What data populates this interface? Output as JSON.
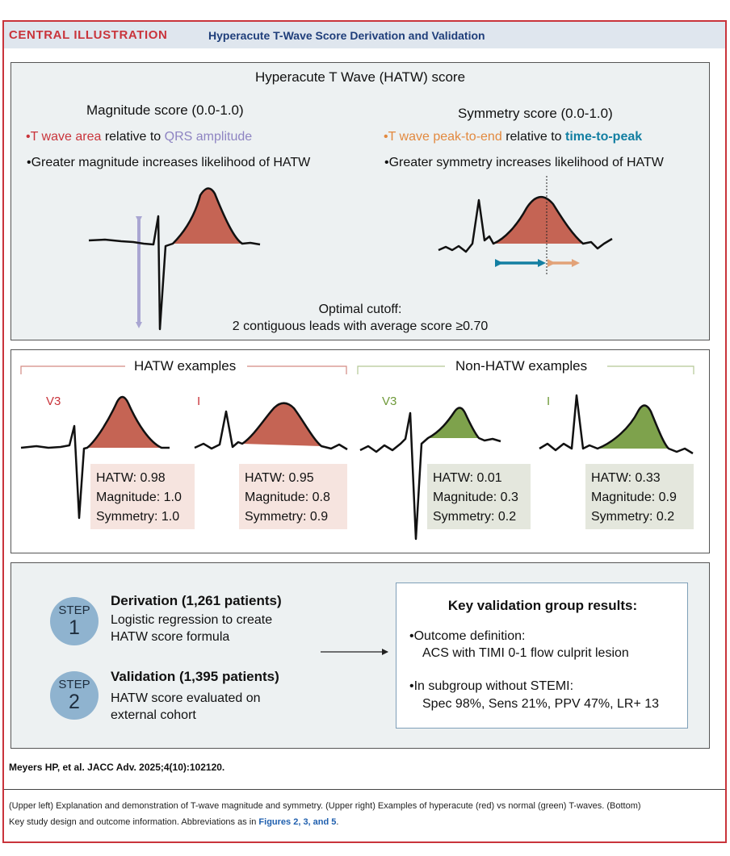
{
  "header": {
    "tag": "CENTRAL ILLUSTRATION",
    "title": "Hyperacute T-Wave Score Derivation and Validation"
  },
  "score_panel": {
    "title": "Hyperacute T Wave (HATW) score",
    "magnitude": {
      "title": "Magnitude score (0.0-1.0)",
      "b1_part1": "T wave area",
      "b1_part2": "relative to",
      "b1_part3": "QRS amplitude",
      "b2": "Greater magnitude increases likelihood of HATW"
    },
    "symmetry": {
      "title": "Symmetry score (0.0-1.0)",
      "b1_part1": "T wave peak-to-end",
      "b1_part2": "relative to",
      "b1_part3": "time-to-peak",
      "b2": "Greater symmetry increases likelihood of HATW"
    },
    "cutoff_line1": "Optimal cutoff:",
    "cutoff_line2": "2 contiguous leads with average score ≥0.70"
  },
  "examples_panel": {
    "hatw_title": "HATW examples",
    "non_hatw_title": "Non-HATW examples",
    "examples": [
      {
        "lead": "V3",
        "hatw": "HATW: 0.98",
        "magnitude": "Magnitude: 1.0",
        "symmetry": "Symmetry: 1.0"
      },
      {
        "lead": "I",
        "hatw": "HATW: 0.95",
        "magnitude": "Magnitude: 0.8",
        "symmetry": "Symmetry: 0.9"
      },
      {
        "lead": "V3",
        "hatw": "HATW: 0.01",
        "magnitude": "Magnitude: 0.3",
        "symmetry": "Symmetry: 0.2"
      },
      {
        "lead": "I",
        "hatw": "HATW: 0.33",
        "magnitude": "Magnitude: 0.9",
        "symmetry": "Symmetry: 0.2"
      }
    ]
  },
  "steps_panel": {
    "step_word": "STEP",
    "steps": [
      {
        "number": "1",
        "title": "Derivation (1,261 patients)",
        "line1": "Logistic regression to create",
        "line2": "HATW score formula"
      },
      {
        "number": "2",
        "title": "Validation (1,395 patients)",
        "line1": "HATW score evaluated on",
        "line2": "external cohort"
      }
    ],
    "key_results": {
      "title": "Key validation group results:",
      "b1_line1": "Outcome definition:",
      "b1_line2": "ACS with TIMI 0-1 flow culprit lesion",
      "b2_line1": "In subgroup without STEMI:",
      "b2_line2": "Spec 98%, Sens 21%, PPV 47%, LR+ 13"
    }
  },
  "citation": "Meyers HP, et al. JACC Adv. 2025;4(10):102120.",
  "caption": {
    "line1": "(Upper left) Explanation and demonstration of T-wave magnitude and symmetry. (Upper right) Examples of hyperacute (red) vs normal (green) T-waves. (Bottom)",
    "line2_pre": "Key study design and outcome information. Abbreviations as in",
    "line2_link": "Figures 2, 3, and 5",
    "line2_post": "."
  },
  "colors": {
    "accent_red": "#c9343b",
    "hatw_fill": "#c56454",
    "normal_fill": "#7ea24c",
    "qrs_purple": "#a9a6d2",
    "peak_end_orange": "#e2a278",
    "time_to_peak_teal": "#137fa2",
    "step_circle": "#8fb3cf"
  }
}
